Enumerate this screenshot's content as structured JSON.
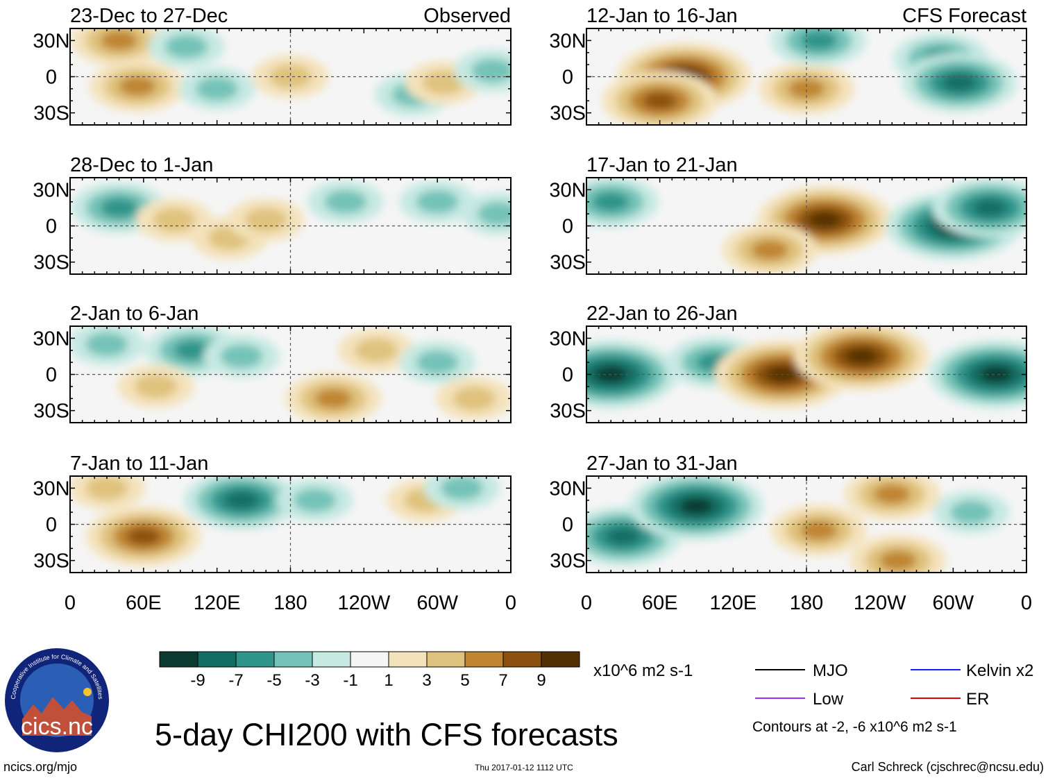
{
  "chart_data": {
    "type": "heatmap",
    "title": "5-day CHI200 with CFS forecasts",
    "panel_headers": {
      "observed": "Observed",
      "forecast": "CFS Forecast"
    },
    "longitude_ticks": [
      "0",
      "60E",
      "120E",
      "180",
      "120W",
      "60W",
      "0"
    ],
    "latitude_ticks": [
      "30N",
      "0",
      "30S"
    ],
    "colorbar": {
      "ticks": [
        "-9",
        "-7",
        "-5",
        "-3",
        "-1",
        "1",
        "3",
        "5",
        "7",
        "9"
      ],
      "colors": [
        "#0c3a31",
        "#126e63",
        "#2f948a",
        "#74c3b8",
        "#c6e9e2",
        "#f5f5f5",
        "#f4e2bb",
        "#dfc27d",
        "#bf8531",
        "#8c5110",
        "#543005"
      ],
      "units": "x10^6 m2 s-1"
    },
    "legend": [
      {
        "label": "MJO",
        "color": "#000000"
      },
      {
        "label": "Kelvin x2",
        "color": "#1a1aff"
      },
      {
        "label": "Low",
        "color": "#9b30ff"
      },
      {
        "label": "ER",
        "color": "#e00000"
      }
    ],
    "contour_note": "Contours at -2, -6 x10^6 m2 s-1",
    "panels": [
      {
        "period": "23-Dec to 27-Dec",
        "source": "Observed",
        "anomalies": [
          {
            "lon": 55,
            "lat": -8,
            "value": 5
          },
          {
            "lon": 40,
            "lat": 30,
            "value": 5
          },
          {
            "lon": 95,
            "lat": 25,
            "value": -3
          },
          {
            "lon": 120,
            "lat": -10,
            "value": -3
          },
          {
            "lon": 180,
            "lat": 0,
            "value": 3
          },
          {
            "lon": 280,
            "lat": -15,
            "value": -3
          },
          {
            "lon": 305,
            "lat": -5,
            "value": 3
          },
          {
            "lon": 345,
            "lat": 5,
            "value": -3
          }
        ]
      },
      {
        "period": "28-Dec to 1-Jan",
        "source": "Observed",
        "anomalies": [
          {
            "lon": 40,
            "lat": 15,
            "value": -5
          },
          {
            "lon": 85,
            "lat": 5,
            "value": 3
          },
          {
            "lon": 130,
            "lat": -10,
            "value": 3
          },
          {
            "lon": 160,
            "lat": 5,
            "value": 3
          },
          {
            "lon": 225,
            "lat": 20,
            "value": -3
          },
          {
            "lon": 300,
            "lat": 20,
            "value": -3
          },
          {
            "lon": 350,
            "lat": 10,
            "value": -3
          }
        ]
      },
      {
        "period": "2-Jan to 6-Jan",
        "source": "Observed",
        "anomalies": [
          {
            "lon": 30,
            "lat": 25,
            "value": -3
          },
          {
            "lon": 100,
            "lat": 20,
            "value": -5
          },
          {
            "lon": 70,
            "lat": -10,
            "value": 3
          },
          {
            "lon": 140,
            "lat": 15,
            "value": -3
          },
          {
            "lon": 215,
            "lat": -20,
            "value": 5
          },
          {
            "lon": 250,
            "lat": 20,
            "value": 3
          },
          {
            "lon": 300,
            "lat": 10,
            "value": -3
          },
          {
            "lon": 330,
            "lat": -20,
            "value": 3
          }
        ]
      },
      {
        "period": "7-Jan to 11-Jan",
        "source": "Observed",
        "anomalies": [
          {
            "lon": 60,
            "lat": -10,
            "value": 7
          },
          {
            "lon": 30,
            "lat": 30,
            "value": 3
          },
          {
            "lon": 140,
            "lat": 20,
            "value": -7
          },
          {
            "lon": 200,
            "lat": 20,
            "value": -3
          },
          {
            "lon": 290,
            "lat": 20,
            "value": 3
          },
          {
            "lon": 320,
            "lat": 30,
            "value": -3
          }
        ]
      },
      {
        "period": "12-Jan to 16-Jan",
        "source": "CFS Forecast",
        "anomalies": [
          {
            "lon": 80,
            "lat": 0,
            "value": 9
          },
          {
            "lon": 60,
            "lat": -20,
            "value": 7
          },
          {
            "lon": 180,
            "lat": -10,
            "value": 5
          },
          {
            "lon": 190,
            "lat": 30,
            "value": -5
          },
          {
            "lon": 290,
            "lat": 15,
            "value": -5
          },
          {
            "lon": 305,
            "lat": -5,
            "value": -7
          }
        ]
      },
      {
        "period": "17-Jan to 21-Jan",
        "source": "CFS Forecast",
        "anomalies": [
          {
            "lon": 20,
            "lat": 20,
            "value": -5
          },
          {
            "lon": 195,
            "lat": 5,
            "value": 9
          },
          {
            "lon": 150,
            "lat": -20,
            "value": 5
          },
          {
            "lon": 300,
            "lat": 0,
            "value": -9
          },
          {
            "lon": 330,
            "lat": 15,
            "value": -7
          }
        ]
      },
      {
        "period": "22-Jan to 26-Jan",
        "source": "CFS Forecast",
        "anomalies": [
          {
            "lon": 20,
            "lat": 0,
            "value": -9
          },
          {
            "lon": 105,
            "lat": 10,
            "value": -5
          },
          {
            "lon": 160,
            "lat": 0,
            "value": 9
          },
          {
            "lon": 225,
            "lat": 15,
            "value": 9
          },
          {
            "lon": 335,
            "lat": 0,
            "value": -9
          }
        ]
      },
      {
        "period": "27-Jan to 31-Jan",
        "source": "CFS Forecast",
        "anomalies": [
          {
            "lon": 30,
            "lat": -10,
            "value": -7
          },
          {
            "lon": 90,
            "lat": 15,
            "value": -9
          },
          {
            "lon": 190,
            "lat": -5,
            "value": 5
          },
          {
            "lon": 250,
            "lat": 25,
            "value": 5
          },
          {
            "lon": 255,
            "lat": -30,
            "value": 5
          },
          {
            "lon": 315,
            "lat": 10,
            "value": -3
          }
        ]
      }
    ]
  },
  "logo": {
    "text": "cics.nc",
    "ring_text": "Cooperative Institute for Climate and Satellites"
  },
  "footer": {
    "url": "ncics.org/mjo",
    "timestamp": "Thu 2017-01-12 1112 UTC",
    "credit": "Carl Schreck (cjschrec@ncsu.edu)"
  }
}
